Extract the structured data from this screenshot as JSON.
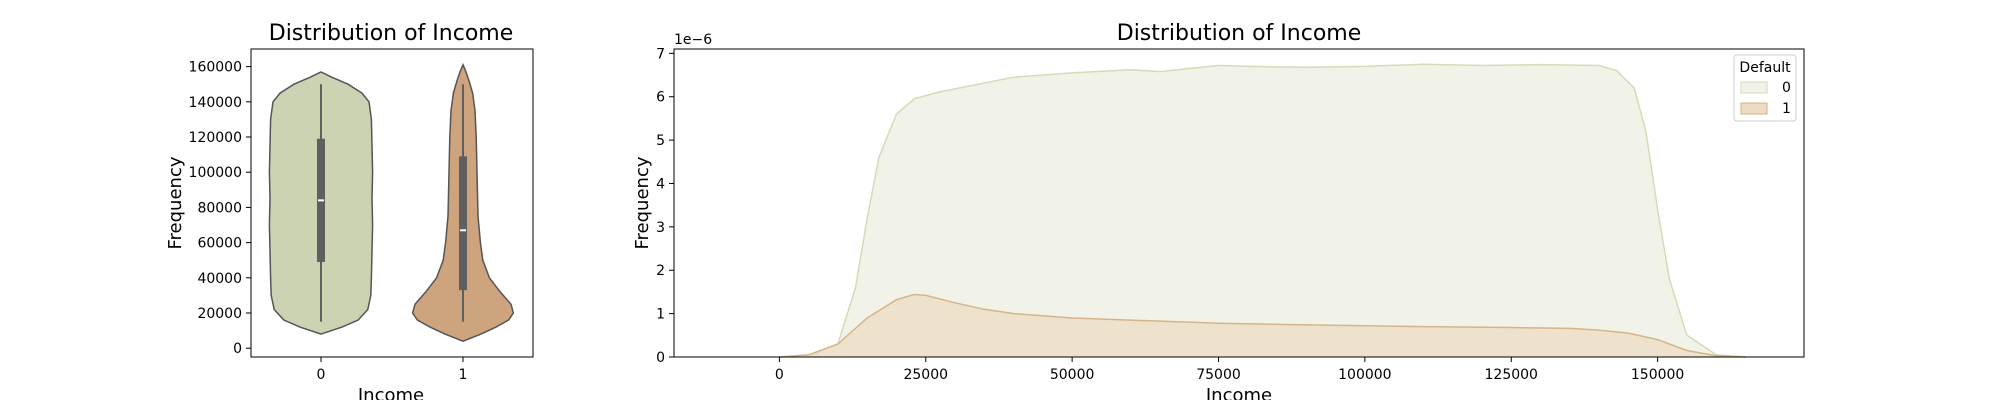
{
  "chart_data": [
    {
      "type": "violin",
      "title": "Distribution of Income",
      "xlabel": "Income",
      "ylabel": "Frequency",
      "categories": [
        "0",
        "1"
      ],
      "ylim": [
        -5000,
        170000
      ],
      "yticks": [
        0,
        20000,
        40000,
        60000,
        80000,
        100000,
        120000,
        140000,
        160000
      ],
      "colors": [
        "#cbd3b3",
        "#cda47e"
      ],
      "series": [
        {
          "category": "0",
          "min": 15000,
          "q1": 49000,
          "median": 84000,
          "q3": 119000,
          "max": 150000,
          "profile_y": [
            8000,
            12000,
            16000,
            22000,
            30000,
            40000,
            55000,
            70000,
            85000,
            100000,
            115000,
            130000,
            140000,
            145000,
            150000,
            154000,
            157000
          ],
          "profile_w": [
            0.0,
            0.35,
            0.62,
            0.78,
            0.83,
            0.84,
            0.85,
            0.86,
            0.85,
            0.86,
            0.85,
            0.84,
            0.8,
            0.68,
            0.45,
            0.18,
            0.0
          ]
        },
        {
          "category": "1",
          "min": 15000,
          "q1": 33000,
          "median": 67000,
          "q3": 109000,
          "max": 150000,
          "profile_y": [
            4000,
            8000,
            12000,
            16000,
            20000,
            25000,
            32000,
            40000,
            50000,
            60000,
            75000,
            90000,
            105000,
            120000,
            135000,
            145000,
            152000,
            157000,
            161000
          ],
          "profile_w": [
            0.0,
            0.3,
            0.55,
            0.76,
            0.84,
            0.8,
            0.62,
            0.44,
            0.33,
            0.29,
            0.25,
            0.24,
            0.23,
            0.22,
            0.2,
            0.16,
            0.1,
            0.05,
            0.0
          ]
        }
      ]
    },
    {
      "type": "area",
      "title": "Distribution of Income",
      "xlabel": "Income",
      "ylabel": "Frequency",
      "y_scale_label": "1e−6",
      "xlim": [
        -18000,
        175000
      ],
      "ylim": [
        0,
        7.1
      ],
      "xticks": [
        0,
        25000,
        50000,
        75000,
        100000,
        125000,
        150000
      ],
      "yticks": [
        0,
        1,
        2,
        3,
        4,
        5,
        6,
        7
      ],
      "legend": {
        "title": "Default",
        "position": "top-right"
      },
      "series": [
        {
          "name": "0",
          "color": "#d3dcb6",
          "fill": "#f2f3e8",
          "x": [
            0,
            5000,
            10000,
            13000,
            15000,
            17000,
            20000,
            23000,
            27000,
            30000,
            40000,
            50000,
            60000,
            65000,
            70000,
            75000,
            80000,
            90000,
            100000,
            110000,
            120000,
            130000,
            140000,
            143000,
            146000,
            148000,
            150000,
            152000,
            155000,
            160000,
            165000
          ],
          "y": [
            0,
            0.01,
            0.3,
            1.6,
            3.2,
            4.6,
            5.6,
            5.95,
            6.1,
            6.18,
            6.45,
            6.55,
            6.62,
            6.58,
            6.65,
            6.72,
            6.7,
            6.68,
            6.7,
            6.75,
            6.72,
            6.74,
            6.72,
            6.6,
            6.2,
            5.2,
            3.4,
            1.8,
            0.5,
            0.05,
            0
          ]
        },
        {
          "name": "1",
          "color": "#d4b48a",
          "fill": "#ecdcc3",
          "x": [
            0,
            5000,
            10000,
            15000,
            20000,
            23000,
            25000,
            30000,
            35000,
            40000,
            50000,
            60000,
            75000,
            90000,
            100000,
            110000,
            125000,
            135000,
            140000,
            145000,
            150000,
            155000,
            160000,
            165000
          ],
          "y": [
            0,
            0.05,
            0.3,
            0.9,
            1.32,
            1.44,
            1.42,
            1.25,
            1.1,
            1.0,
            0.9,
            0.85,
            0.78,
            0.74,
            0.72,
            0.7,
            0.68,
            0.66,
            0.62,
            0.55,
            0.4,
            0.15,
            0.03,
            0
          ]
        }
      ]
    }
  ]
}
